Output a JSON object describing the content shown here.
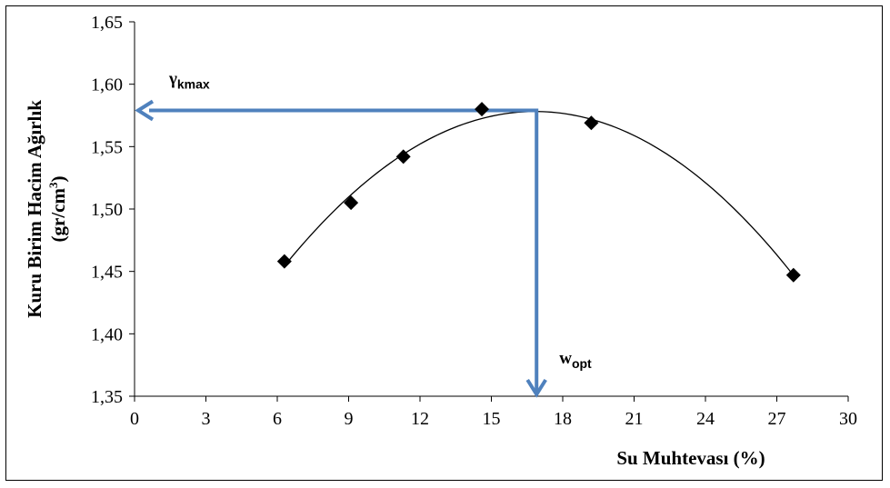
{
  "chart_data": {
    "type": "scatter",
    "xlabel": "Su Muhtevası (%)",
    "ylabel_line1": "Kuru Birim Hacim Ağırlık",
    "ylabel_line2_prefix": "(gr/cm",
    "ylabel_line2_sup": "3",
    "ylabel_line2_suffix": ")",
    "xlim": [
      0,
      30
    ],
    "ylim": [
      1.35,
      1.65
    ],
    "x_ticks": [
      0,
      3,
      6,
      9,
      12,
      15,
      18,
      21,
      24,
      27,
      30
    ],
    "x_tick_labels": [
      "0",
      "3",
      "6",
      "9",
      "12",
      "15",
      "18",
      "21",
      "24",
      "27",
      "30"
    ],
    "y_ticks": [
      1.35,
      1.4,
      1.45,
      1.5,
      1.55,
      1.6,
      1.65
    ],
    "y_tick_labels": [
      "1,35",
      "1,40",
      "1,45",
      "1,50",
      "1,55",
      "1,60",
      "1,65"
    ],
    "grid": false,
    "series": [
      {
        "marker": "diamond",
        "color": "#000000",
        "x": [
          6.3,
          9.1,
          11.3,
          14.6,
          19.2,
          27.7
        ],
        "y": [
          1.458,
          1.505,
          1.542,
          1.58,
          1.569,
          1.447
        ]
      }
    ],
    "trendline": {
      "type": "polynomial-2",
      "x_range": [
        6.3,
        27.7
      ],
      "peak": [
        16.9,
        1.579
      ],
      "color": "#000000"
    },
    "annotations": {
      "color": "#4f81bd",
      "max_point": [
        16.9,
        1.579
      ],
      "gamma_label": "γ",
      "gamma_sub": "kmax",
      "w_label": "w",
      "w_sub": "opt"
    }
  }
}
